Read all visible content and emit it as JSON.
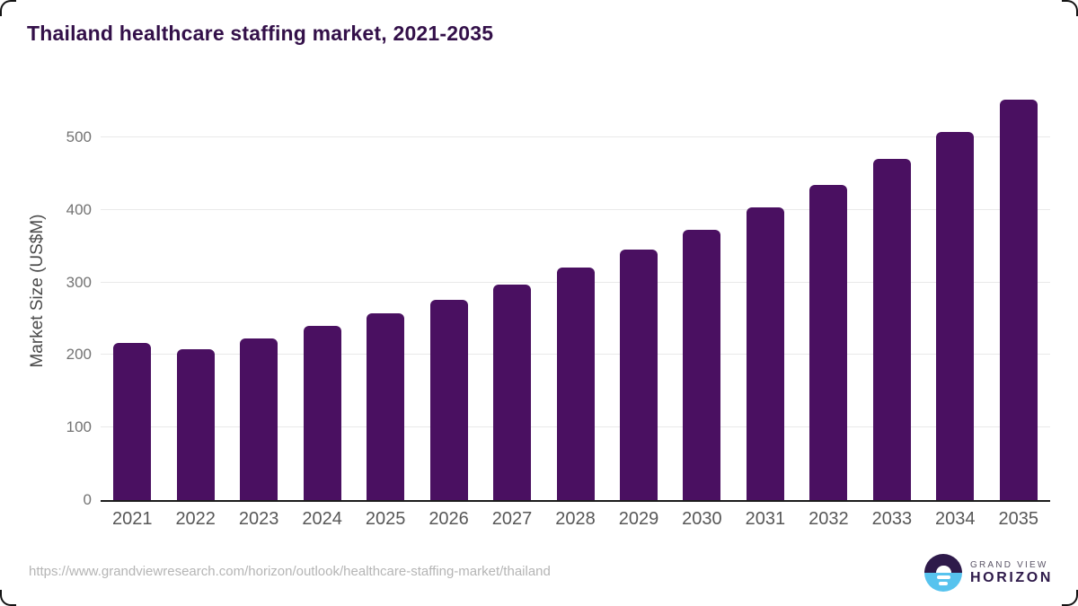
{
  "title": "Thailand healthcare staffing market, 2021-2035",
  "chart_data": {
    "type": "bar",
    "title": "Thailand healthcare staffing market, 2021-2035",
    "categories": [
      "2021",
      "2022",
      "2023",
      "2024",
      "2025",
      "2026",
      "2027",
      "2028",
      "2029",
      "2030",
      "2031",
      "2032",
      "2033",
      "2034",
      "2035"
    ],
    "values": [
      216,
      208,
      223,
      240,
      257,
      276,
      297,
      320,
      345,
      372,
      403,
      435,
      470,
      508,
      552
    ],
    "xlabel": "",
    "ylabel": "Market Size (US$M)",
    "yticks": [
      0,
      100,
      200,
      300,
      400,
      500
    ],
    "ylim": [
      0,
      560
    ],
    "grid": true,
    "legend": "none",
    "bar_color": "#4a1061",
    "gridline_color": "#e9e9e9"
  },
  "footer": {
    "source_url": "https://www.grandviewresearch.com/horizon/outlook/healthcare-staffing-market/thailand",
    "brand": {
      "line1": "GRAND VIEW",
      "line2": "HORIZON"
    }
  },
  "colors": {
    "title_purple": "#331049",
    "bar_purple": "#4a1061",
    "axis_line": "#1c1c1c",
    "gridline": "#e9e9e9",
    "y_tick_label": "#737373",
    "x_tick_label": "#575757",
    "url_gray": "#b5b5b5",
    "logo_purple": "#2e1a4a",
    "logo_blue": "#57c3ee"
  }
}
